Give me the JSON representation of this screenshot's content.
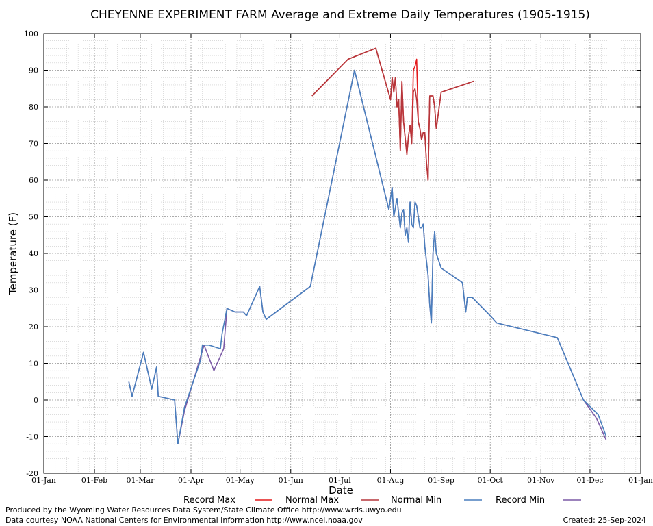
{
  "chart_data": {
    "type": "line",
    "title": "CHEYENNE EXPERIMENT FARM Average and Extreme Daily Temperatures (1905-1915)",
    "xlabel": "Date",
    "ylabel": "Temperature (F)",
    "xlim": [
      "01-Jan",
      "01-Jan"
    ],
    "ylim": [
      -20,
      100
    ],
    "yticks": [
      -20,
      -10,
      0,
      10,
      20,
      30,
      40,
      50,
      60,
      70,
      80,
      90,
      100
    ],
    "xticks": [
      "01-Jan",
      "01-Feb",
      "01-Mar",
      "01-Apr",
      "01-May",
      "01-Jun",
      "01-Jul",
      "01-Aug",
      "01-Sep",
      "01-Oct",
      "01-Nov",
      "01-Dec",
      "01-Jan"
    ],
    "grid": true,
    "legend_position": "bottom",
    "series": [
      {
        "name": "Record Max",
        "color": "#e41a1c",
        "points": [
          [
            "Jun-14",
            83
          ],
          [
            "Jul-06",
            93
          ],
          [
            "Jul-23",
            96
          ],
          [
            "Aug-01",
            82
          ],
          [
            "Aug-02",
            88
          ],
          [
            "Aug-03",
            84
          ],
          [
            "Aug-04",
            88
          ],
          [
            "Aug-05",
            80
          ],
          [
            "Aug-06",
            82
          ],
          [
            "Aug-07",
            68
          ],
          [
            "Aug-08",
            87
          ],
          [
            "Aug-09",
            76
          ],
          [
            "Aug-11",
            67
          ],
          [
            "Aug-12",
            72
          ],
          [
            "Aug-13",
            75
          ],
          [
            "Aug-14",
            70
          ],
          [
            "Aug-15",
            90
          ],
          [
            "Aug-16",
            91
          ],
          [
            "Aug-17",
            93
          ],
          [
            "Aug-18",
            76
          ],
          [
            "Aug-19",
            74
          ],
          [
            "Aug-20",
            71
          ],
          [
            "Aug-21",
            73
          ],
          [
            "Aug-22",
            73
          ],
          [
            "Aug-23",
            65
          ],
          [
            "Aug-24",
            60
          ],
          [
            "Aug-25",
            83
          ],
          [
            "Aug-26",
            83
          ],
          [
            "Aug-27",
            83
          ],
          [
            "Aug-28",
            80
          ],
          [
            "Aug-29",
            74
          ],
          [
            "Sep-01",
            84
          ],
          [
            "Sep-21",
            87
          ]
        ]
      },
      {
        "name": "Normal Max",
        "color": "#b5363b",
        "points": [
          [
            "Jun-14",
            83
          ],
          [
            "Jul-06",
            93
          ],
          [
            "Jul-23",
            96
          ],
          [
            "Aug-01",
            82
          ],
          [
            "Aug-02",
            88
          ],
          [
            "Aug-03",
            84
          ],
          [
            "Aug-04",
            88
          ],
          [
            "Aug-05",
            80
          ],
          [
            "Aug-06",
            82
          ],
          [
            "Aug-07",
            68
          ],
          [
            "Aug-08",
            87
          ],
          [
            "Aug-09",
            76
          ],
          [
            "Aug-11",
            67
          ],
          [
            "Aug-12",
            72
          ],
          [
            "Aug-13",
            75
          ],
          [
            "Aug-14",
            70
          ],
          [
            "Aug-15",
            84
          ],
          [
            "Aug-16",
            85
          ],
          [
            "Aug-17",
            82
          ],
          [
            "Aug-18",
            76
          ],
          [
            "Aug-19",
            74
          ],
          [
            "Aug-20",
            71
          ],
          [
            "Aug-21",
            73
          ],
          [
            "Aug-22",
            73
          ],
          [
            "Aug-23",
            65
          ],
          [
            "Aug-24",
            60
          ],
          [
            "Aug-25",
            83
          ],
          [
            "Aug-26",
            83
          ],
          [
            "Aug-27",
            83
          ],
          [
            "Aug-28",
            80
          ],
          [
            "Aug-29",
            74
          ],
          [
            "Sep-01",
            84
          ],
          [
            "Sep-21",
            87
          ]
        ]
      },
      {
        "name": "Normal Min",
        "color": "#4a7fbd",
        "points": [
          [
            "Feb-22",
            5
          ],
          [
            "Feb-24",
            1
          ],
          [
            "Mar-03",
            13
          ],
          [
            "Mar-08",
            3
          ],
          [
            "Mar-11",
            9
          ],
          [
            "Mar-12",
            1
          ],
          [
            "Mar-22",
            0
          ],
          [
            "Mar-24",
            -12
          ],
          [
            "Mar-28",
            -2
          ],
          [
            "Apr-07",
            11
          ],
          [
            "Apr-08",
            15
          ],
          [
            "Apr-12",
            15
          ],
          [
            "Apr-19",
            14
          ],
          [
            "Apr-20",
            18
          ],
          [
            "Apr-23",
            25
          ],
          [
            "Apr-28",
            24
          ],
          [
            "May-03",
            24
          ],
          [
            "May-05",
            23
          ],
          [
            "May-08",
            26
          ],
          [
            "May-13",
            31
          ],
          [
            "May-15",
            24
          ],
          [
            "May-17",
            22
          ],
          [
            "Jun-13",
            31
          ],
          [
            "Jul-10",
            90
          ],
          [
            "Jul-31",
            52
          ],
          [
            "Aug-02",
            58
          ],
          [
            "Aug-03",
            50
          ],
          [
            "Aug-05",
            55
          ],
          [
            "Aug-07",
            47
          ],
          [
            "Aug-08",
            51
          ],
          [
            "Aug-09",
            52
          ],
          [
            "Aug-10",
            45
          ],
          [
            "Aug-11",
            47
          ],
          [
            "Aug-12",
            43
          ],
          [
            "Aug-13",
            54
          ],
          [
            "Aug-14",
            48
          ],
          [
            "Aug-15",
            47
          ],
          [
            "Aug-16",
            54
          ],
          [
            "Aug-17",
            53
          ],
          [
            "Aug-19",
            47
          ],
          [
            "Aug-20",
            47
          ],
          [
            "Aug-21",
            48
          ],
          [
            "Aug-22",
            42
          ],
          [
            "Aug-23",
            38
          ],
          [
            "Aug-24",
            34
          ],
          [
            "Aug-25",
            26
          ],
          [
            "Aug-26",
            21
          ],
          [
            "Aug-27",
            40
          ],
          [
            "Aug-28",
            46
          ],
          [
            "Aug-29",
            40
          ],
          [
            "Sep-01",
            36
          ],
          [
            "Sep-14",
            32
          ],
          [
            "Sep-16",
            24
          ],
          [
            "Sep-17",
            28
          ],
          [
            "Sep-20",
            28
          ],
          [
            "Oct-01",
            23
          ],
          [
            "Oct-05",
            21
          ],
          [
            "Nov-11",
            17
          ],
          [
            "Nov-27",
            0
          ],
          [
            "Dec-06",
            -4
          ],
          [
            "Dec-11",
            -10
          ]
        ]
      },
      {
        "name": "Record Min",
        "color": "#7b5aa6",
        "points": [
          [
            "Feb-22",
            5
          ],
          [
            "Feb-24",
            1
          ],
          [
            "Mar-03",
            13
          ],
          [
            "Mar-08",
            3
          ],
          [
            "Mar-11",
            9
          ],
          [
            "Mar-12",
            1
          ],
          [
            "Mar-22",
            0
          ],
          [
            "Mar-24",
            -12
          ],
          [
            "Mar-28",
            -3
          ],
          [
            "Apr-09",
            15
          ],
          [
            "Apr-15",
            8
          ],
          [
            "Apr-21",
            14
          ],
          [
            "Apr-23",
            25
          ],
          [
            "Apr-28",
            24
          ],
          [
            "May-03",
            24
          ],
          [
            "May-05",
            23
          ],
          [
            "May-08",
            26
          ],
          [
            "May-13",
            31
          ],
          [
            "May-15",
            24
          ],
          [
            "May-17",
            22
          ],
          [
            "Jun-13",
            31
          ],
          [
            "Jul-10",
            90
          ],
          [
            "Jul-31",
            52
          ],
          [
            "Aug-02",
            58
          ],
          [
            "Aug-03",
            50
          ],
          [
            "Aug-05",
            55
          ],
          [
            "Aug-07",
            47
          ],
          [
            "Aug-08",
            51
          ],
          [
            "Aug-09",
            52
          ],
          [
            "Aug-10",
            45
          ],
          [
            "Aug-11",
            47
          ],
          [
            "Aug-12",
            43
          ],
          [
            "Aug-13",
            54
          ],
          [
            "Aug-14",
            48
          ],
          [
            "Aug-15",
            47
          ],
          [
            "Aug-16",
            54
          ],
          [
            "Aug-17",
            53
          ],
          [
            "Aug-19",
            47
          ],
          [
            "Aug-20",
            47
          ],
          [
            "Aug-21",
            48
          ],
          [
            "Aug-22",
            42
          ],
          [
            "Aug-23",
            38
          ],
          [
            "Aug-24",
            34
          ],
          [
            "Aug-25",
            26
          ],
          [
            "Aug-26",
            21
          ],
          [
            "Aug-27",
            40
          ],
          [
            "Aug-28",
            46
          ],
          [
            "Aug-29",
            40
          ],
          [
            "Sep-01",
            36
          ],
          [
            "Sep-14",
            32
          ],
          [
            "Sep-16",
            24
          ],
          [
            "Sep-17",
            28
          ],
          [
            "Sep-20",
            28
          ],
          [
            "Oct-01",
            23
          ],
          [
            "Oct-05",
            21
          ],
          [
            "Nov-11",
            17
          ],
          [
            "Nov-27",
            0
          ],
          [
            "Dec-05",
            -5
          ],
          [
            "Dec-11",
            -11
          ]
        ]
      }
    ]
  },
  "footer": {
    "produced_by": "Produced by the Wyoming Water Resources Data System/State Climate Office http://www.wrds.uwyo.edu",
    "courtesy": "Data courtesy NOAA National Centers for Environmental Information http://www.ncei.noaa.gov",
    "created": "Created:  25-Sep-2024"
  }
}
